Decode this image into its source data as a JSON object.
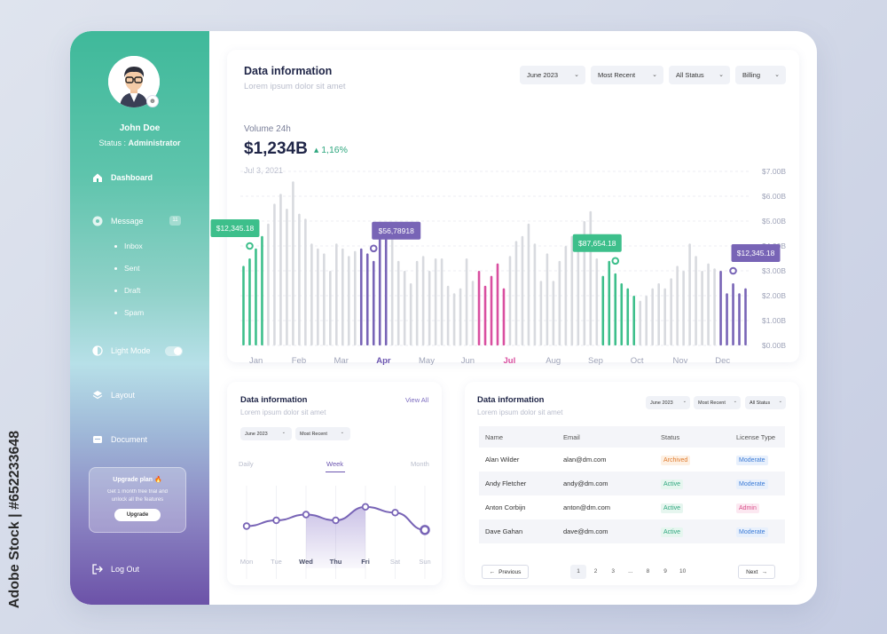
{
  "watermark": "Adobe Stock | #652233648",
  "colors": {
    "green": "#3dbf8b",
    "purple": "#7864b6",
    "pink": "#d94fa0",
    "gray": "#d8dadf"
  },
  "sidebar": {
    "user": {
      "name": "John Doe",
      "status_label": "Status :",
      "status_value": "Administrator"
    },
    "items": [
      {
        "label": "Dashboard",
        "icon": "home-icon"
      },
      {
        "label": "Message",
        "icon": "message-icon",
        "badge": "11"
      },
      {
        "label": "Light Mode",
        "icon": "contrast-icon",
        "toggle_on": true
      },
      {
        "label": "Layout",
        "icon": "layers-icon"
      },
      {
        "label": "Document",
        "icon": "document-icon"
      }
    ],
    "subitems": [
      "Inbox",
      "Sent",
      "Draft",
      "Spam"
    ],
    "upgrade": {
      "title": "Upgrade plan 🔥",
      "text": "Get 1 month free trial and unlock all the features",
      "button": "Upgrade"
    },
    "logout": "Log Out"
  },
  "main": {
    "title": "Data information",
    "subtitle": "Lorem ipsum dolor sit amet",
    "filters": [
      "June 2023",
      "Most Recent",
      "All Status",
      "Billing"
    ],
    "volume_label": "Volume 24h",
    "volume_value": "$1,234B",
    "volume_change": "1,16%",
    "volume_date": "Jul 3, 2021"
  },
  "chart_data": {
    "type": "bar",
    "x_labels": [
      "Jan",
      "Feb",
      "Mar",
      "Apr",
      "May",
      "Jun",
      "Jul",
      "Aug",
      "Sep",
      "Oct",
      "Nov",
      "Dec"
    ],
    "highlight_labels": [
      "Apr",
      "Jul"
    ],
    "y_ticks": [
      "$7.00B",
      "$6.00B",
      "$5.00B",
      "$4.00B",
      "$3.00B",
      "$2.00B",
      "$1.00B",
      "$0.00B"
    ],
    "ylim": [
      0,
      7
    ],
    "values": [
      3.2,
      3.5,
      3.9,
      4.4,
      4.9,
      5.7,
      6.1,
      5.5,
      6.6,
      5.3,
      5.1,
      4.1,
      3.9,
      3.7,
      3.0,
      4.1,
      3.9,
      3.6,
      3.8,
      3.9,
      3.7,
      3.4,
      4.3,
      4.7,
      4.4,
      3.4,
      3.0,
      2.5,
      3.4,
      3.6,
      3.0,
      3.5,
      3.5,
      2.4,
      2.1,
      2.3,
      3.5,
      2.6,
      3.0,
      2.4,
      2.8,
      3.3,
      2.3,
      3.6,
      4.2,
      4.4,
      4.9,
      4.1,
      2.6,
      3.7,
      2.6,
      3.4,
      4.0,
      4.4,
      4.0,
      5.0,
      5.4,
      3.5,
      2.8,
      3.4,
      2.9,
      2.5,
      2.3,
      2.0,
      1.8,
      2.0,
      2.3,
      2.5,
      2.3,
      2.7,
      3.2,
      3.0,
      4.1,
      3.6,
      3.0,
      3.3,
      3.1,
      3.0,
      2.1,
      2.5,
      2.1,
      2.3
    ],
    "colors": [
      "green",
      "green",
      "green",
      "green",
      "gray",
      "gray",
      "gray",
      "gray",
      "gray",
      "gray",
      "gray",
      "gray",
      "gray",
      "gray",
      "gray",
      "gray",
      "gray",
      "gray",
      "gray",
      "purple",
      "purple",
      "purple",
      "purple",
      "purple",
      "gray",
      "gray",
      "gray",
      "gray",
      "gray",
      "gray",
      "gray",
      "gray",
      "gray",
      "gray",
      "gray",
      "gray",
      "gray",
      "gray",
      "pink",
      "pink",
      "pink",
      "pink",
      "pink",
      "gray",
      "gray",
      "gray",
      "gray",
      "gray",
      "gray",
      "gray",
      "gray",
      "gray",
      "gray",
      "gray",
      "gray",
      "gray",
      "gray",
      "gray",
      "green",
      "green",
      "green",
      "green",
      "green",
      "green",
      "gray",
      "gray",
      "gray",
      "gray",
      "gray",
      "gray",
      "gray",
      "gray",
      "gray",
      "gray",
      "gray",
      "gray",
      "gray",
      "purple",
      "purple",
      "purple",
      "purple",
      "purple"
    ],
    "callouts": [
      {
        "text": "$12,345.18",
        "color": "#3dbf8b",
        "bar": 1
      },
      {
        "text": "$56,78918",
        "color": "#7864b6",
        "bar": 21
      },
      {
        "text": "$87,654.18",
        "color": "#3dbf8b",
        "bar": 60
      },
      {
        "text": "$12,345.18",
        "color": "#7864b6",
        "bar": 79
      }
    ]
  },
  "week_card": {
    "title": "Data information",
    "subtitle": "Lorem ipsum dolor sit amet",
    "view_all": "View All",
    "filters": [
      "June 2023",
      "Most Recent"
    ],
    "tabs": [
      "Daily",
      "Week",
      "Month"
    ],
    "days": [
      "Mon",
      "Tue",
      "Wed",
      "Thu",
      "Fri",
      "Sat",
      "Sun"
    ],
    "highlight_days": [
      "Wed",
      "Thu",
      "Fri"
    ],
    "line_values": [
      3.0,
      3.6,
      4.2,
      3.6,
      5.0,
      4.4,
      2.6
    ]
  },
  "table_card": {
    "title": "Data information",
    "subtitle": "Lorem ipsum dolor sit amet",
    "filters": [
      "June 2023",
      "Most Recent",
      "All Status"
    ],
    "columns": [
      "Name",
      "Email",
      "Status",
      "License Type"
    ],
    "rows": [
      {
        "name": "Alan Wilder",
        "email": "alan@dm.com",
        "status": "Archived",
        "license": "Moderate"
      },
      {
        "name": "Andy Fletcher",
        "email": "andy@dm.com",
        "status": "Active",
        "license": "Moderate"
      },
      {
        "name": "Anton Corbijn",
        "email": "anton@dm.com",
        "status": "Active",
        "license": "Admin"
      },
      {
        "name": "Dave Gahan",
        "email": "dave@dm.com",
        "status": "Active",
        "license": "Moderate"
      }
    ],
    "pager": {
      "prev": "Previous",
      "next": "Next",
      "pages": [
        "1",
        "2",
        "3",
        "...",
        "8",
        "9",
        "10"
      ],
      "current": "1"
    }
  }
}
